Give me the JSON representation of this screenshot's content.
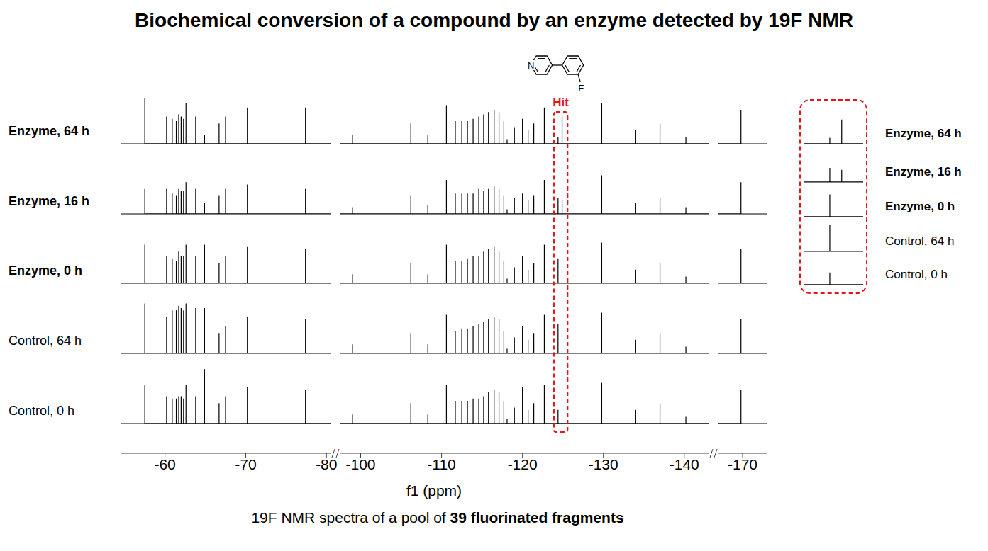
{
  "title": "Biochemical conversion of a compound by an enzyme detected by 19F NMR",
  "caption": {
    "text": "19F NMR spectra of a pool of",
    "bold": "39 fluorinated fragments"
  },
  "chart_data": {
    "type": "line",
    "x_label": "f1 (ppm)",
    "tick_labels": "x",
    "ylim": [
      0,
      1.25
    ],
    "segments": [
      {
        "xlim": [
          -54.5,
          -80.5
        ],
        "xticks": [
          -60,
          -70,
          -80
        ]
      },
      {
        "xlim": [
          -97.5,
          -143
        ],
        "xticks": [
          -100,
          -110,
          -120,
          -130,
          -140
        ]
      },
      {
        "xlim": [
          -167,
          -173
        ],
        "xticks": [
          -170
        ]
      }
    ],
    "x": [
      -57.5,
      -60.2,
      -60.9,
      -61.4,
      -61.7,
      -62,
      -62.3,
      -62.6,
      -63.8,
      -64.9,
      -66.7,
      -67.5,
      -70.2,
      -77.4,
      -99,
      -106.2,
      -108.3,
      -110.6,
      -111.7,
      -112.5,
      -113.2,
      -113.9,
      -114.6,
      -115.2,
      -115.8,
      -116.5,
      -117.1,
      -117.7,
      -118.1,
      -119,
      -120,
      -120.7,
      -121.4,
      -122.7,
      -124.4,
      -124.9,
      -129.8,
      -134,
      -137,
      -140.2,
      -169.8
    ],
    "series": [
      {
        "name": "Enzyme, 64 h",
        "color": "#000000",
        "values": [
          1.0,
          0.6,
          0.55,
          0.5,
          0.65,
          0.6,
          0.55,
          0.9,
          0.6,
          0.2,
          0.45,
          0.6,
          0.8,
          0.8,
          0.2,
          0.45,
          0.2,
          0.85,
          0.5,
          0.5,
          0.5,
          0.55,
          0.6,
          0.65,
          0.7,
          0.75,
          0.7,
          0.5,
          0.1,
          0.35,
          0.55,
          0.3,
          0.45,
          0.8,
          0.15,
          0.6,
          0.9,
          0.3,
          0.45,
          0.15,
          0.75
        ]
      },
      {
        "name": "Enzyme, 16 h",
        "color": "#000000",
        "values": [
          0.55,
          0.55,
          0.45,
          0.4,
          0.55,
          0.5,
          0.5,
          0.7,
          0.55,
          0.25,
          0.4,
          0.55,
          0.65,
          0.55,
          0.15,
          0.4,
          0.2,
          0.75,
          0.45,
          0.45,
          0.45,
          0.45,
          0.55,
          0.5,
          0.55,
          0.6,
          0.55,
          0.4,
          0.1,
          0.35,
          0.45,
          0.3,
          0.4,
          0.75,
          0.35,
          0.3,
          0.85,
          0.25,
          0.35,
          0.15,
          0.7
        ]
      },
      {
        "name": "Enzyme, 0 h",
        "color": "#000000",
        "values": [
          0.85,
          0.6,
          0.55,
          0.5,
          0.7,
          0.6,
          0.6,
          0.85,
          0.6,
          0.85,
          0.45,
          0.6,
          0.8,
          0.75,
          0.2,
          0.45,
          0.2,
          0.85,
          0.5,
          0.5,
          0.55,
          0.6,
          0.6,
          0.7,
          0.75,
          0.8,
          0.7,
          0.5,
          0.1,
          0.35,
          0.6,
          0.3,
          0.45,
          0.85,
          0.55,
          0,
          0.9,
          0.3,
          0.45,
          0.15,
          0.75
        ]
      },
      {
        "name": "Control, 64 h",
        "color": "#000000",
        "values": [
          1.1,
          0.8,
          0.95,
          0.95,
          1.05,
          1.0,
          0.95,
          1.1,
          1.0,
          1.0,
          0.45,
          0.6,
          0.8,
          0.75,
          0.2,
          0.45,
          0.2,
          0.85,
          0.5,
          0.55,
          0.55,
          0.6,
          0.65,
          0.7,
          0.75,
          0.8,
          0.75,
          0.5,
          0.1,
          0.35,
          0.6,
          0.3,
          0.45,
          0.85,
          0.65,
          0,
          0.9,
          0.3,
          0.45,
          0.15,
          0.75
        ]
      },
      {
        "name": "Control, 0 h",
        "color": "#000000",
        "values": [
          0.85,
          0.6,
          0.55,
          0.55,
          0.6,
          0.6,
          0.55,
          0.85,
          0.6,
          1.2,
          0.45,
          0.6,
          0.8,
          0.75,
          0.2,
          0.45,
          0.2,
          0.85,
          0.5,
          0.5,
          0.5,
          0.55,
          0.55,
          0.6,
          0.7,
          0.75,
          0.7,
          0.5,
          0.1,
          0.35,
          0.8,
          0.3,
          0.45,
          0.85,
          0.3,
          0,
          0.9,
          0.3,
          0.45,
          0.15,
          0.75
        ]
      }
    ],
    "annotation": {
      "text": "Hit",
      "color": "#e8141c",
      "xlim": [
        -123.9,
        -125.6
      ]
    },
    "structure": {
      "atoms": [
        "N",
        "F"
      ]
    },
    "inset": {
      "xlim": [
        -123.3,
        -125.8
      ],
      "ylim": [
        0,
        0.7
      ],
      "color": "#e8141c"
    }
  }
}
